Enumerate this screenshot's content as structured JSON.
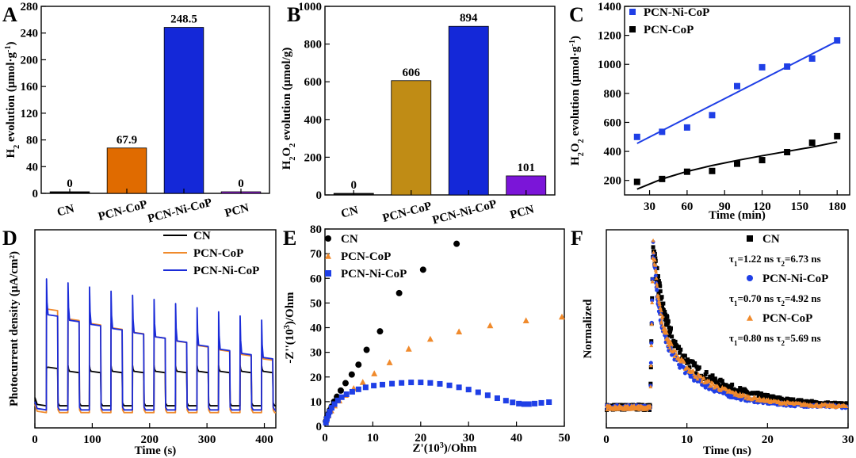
{
  "chart_data": [
    {
      "panel": "A",
      "type": "bar",
      "ylabel_parts": [
        "H",
        "2",
        " evolution (μmol·g",
        "-1",
        ")"
      ],
      "categories": [
        "CN",
        "PCN-CoP",
        "PCN-Ni-CoP",
        "PCN"
      ],
      "values": [
        0,
        67.9,
        248.5,
        0
      ],
      "labels": [
        "0",
        "67.9",
        "248.5",
        "0"
      ],
      "colors": [
        "#000000",
        "#e06b00",
        "#1428d8",
        "#9b1fe6"
      ],
      "ylim": [
        0,
        280
      ],
      "yticks": [
        0,
        40,
        80,
        120,
        160,
        200,
        240,
        280
      ]
    },
    {
      "panel": "B",
      "type": "bar",
      "ylabel_parts": [
        "H",
        "2",
        "O",
        "2",
        " evolution (μmol/g)"
      ],
      "categories": [
        "CN",
        "PCN-CoP",
        "PCN-Ni-CoP",
        "PCN"
      ],
      "values": [
        0,
        606,
        894,
        101
      ],
      "labels": [
        "0",
        "606",
        "894",
        "101"
      ],
      "colors": [
        "#111111",
        "#c08c15",
        "#1428d8",
        "#7b15d8"
      ],
      "ylim": [
        0,
        1000
      ],
      "yticks": [
        0,
        200,
        400,
        600,
        800,
        1000
      ]
    },
    {
      "panel": "C",
      "type": "scatter",
      "xlabel": "Time (min)",
      "ylabel_parts": [
        "H",
        "2",
        "O",
        "2",
        " evolution (μmol·g",
        "-1",
        ")"
      ],
      "xlim": [
        10,
        190
      ],
      "ylim": [
        100,
        1400
      ],
      "xticks": [
        30,
        60,
        90,
        120,
        150,
        180
      ],
      "yticks": [
        200,
        400,
        600,
        800,
        1000,
        1200,
        1400
      ],
      "series": [
        {
          "name": "PCN-Ni-CoP",
          "color": "#1f3fe6",
          "marker": "square",
          "x": [
            20,
            40,
            60,
            80,
            100,
            120,
            140,
            160,
            180
          ],
          "y": [
            500,
            535,
            565,
            650,
            850,
            980,
            985,
            1040,
            1165
          ],
          "fit": {
            "kind": "linear",
            "x": [
              20,
              180
            ],
            "y": [
              455,
              1160
            ]
          }
        },
        {
          "name": "PCN-CoP",
          "color": "#000000",
          "marker": "square",
          "x": [
            20,
            40,
            60,
            80,
            100,
            120,
            140,
            160,
            180
          ],
          "y": [
            190,
            210,
            260,
            265,
            315,
            340,
            395,
            460,
            505
          ],
          "fit": {
            "kind": "curve",
            "x": [
              20,
              40,
              60,
              80,
              100,
              120,
              140,
              160,
              180
            ],
            "y": [
              140,
              210,
              262,
              303,
              338,
              370,
              400,
              430,
              465
            ]
          }
        }
      ]
    },
    {
      "panel": "D",
      "type": "line",
      "xlabel": "Time (s)",
      "ylabel": "Photocurrent density (μA/cm²)",
      "xlim": [
        0,
        420
      ],
      "xticks": [
        0,
        100,
        200,
        300,
        400
      ],
      "pulses": [
        20,
        57.5,
        95,
        132.5,
        170,
        207.5,
        245,
        282.5,
        320,
        357.5,
        395
      ],
      "series": [
        {
          "name": "CN",
          "color": "#000000",
          "dark": 0.08,
          "on_start": 0.33,
          "on_end": 0.33,
          "on_first": 0.36,
          "spike": 0.35
        },
        {
          "name": "PCN-CoP",
          "color": "#f08a2c",
          "dark": 0.03,
          "on_start": 0.74,
          "on_end": 0.42,
          "on_first": 0.78,
          "spike": 0.76
        },
        {
          "name": "PCN-Ni-CoP",
          "color": "#1a2bd8",
          "dark": 0.05,
          "on_start": 0.73,
          "on_end": 0.43,
          "on_first": 0.74,
          "spike": 1.0
        }
      ]
    },
    {
      "panel": "E",
      "type": "scatter",
      "xlabel_parts": [
        "Z'(10",
        "3",
        ")/Ohm"
      ],
      "ylabel_parts": [
        "-Z''(10",
        "3",
        ")/Ohm"
      ],
      "xlim": [
        0,
        50
      ],
      "ylim": [
        0,
        80
      ],
      "xticks": [
        0,
        10,
        20,
        30,
        40,
        50
      ],
      "yticks": [
        0,
        10,
        20,
        30,
        40,
        50,
        60,
        70,
        80
      ],
      "series": [
        {
          "name": "CN",
          "color": "#000000",
          "marker": "circle",
          "x": [
            0.2,
            0.4,
            0.7,
            1.0,
            1.4,
            1.9,
            2.5,
            3.3,
            4.3,
            5.6,
            7.0,
            8.7,
            11.5,
            15.5,
            20.5,
            27.5
          ],
          "y": [
            2.0,
            3.5,
            5.0,
            6.5,
            8.0,
            10.0,
            12.0,
            14.5,
            17.5,
            21.0,
            25.0,
            31.0,
            38.5,
            54.0,
            63.5,
            74.0
          ]
        },
        {
          "name": "PCN-CoP",
          "color": "#f08a2c",
          "marker": "triangle",
          "x": [
            0.3,
            0.7,
            1.3,
            2.0,
            3.0,
            4.3,
            6.0,
            7.9,
            10.3,
            13.5,
            17.5,
            22.0,
            28.0,
            34.5,
            42.0,
            49.5
          ],
          "y": [
            2.5,
            4.5,
            6.5,
            8.5,
            10.5,
            12.8,
            15.5,
            18.0,
            21.5,
            26.0,
            31.5,
            35.5,
            38.5,
            41.0,
            43.0,
            44.5
          ]
        },
        {
          "name": "PCN-Ni-CoP",
          "color": "#1f3fe6",
          "marker": "square",
          "x": [
            0.2,
            0.4,
            0.7,
            1.0,
            1.4,
            2.0,
            2.7,
            3.5,
            4.5,
            5.7,
            7.0,
            8.5,
            10.2,
            12.0,
            14.0,
            16.0,
            18.0,
            20.0,
            22.0,
            24.0,
            26.0,
            28.0,
            30.0,
            32.0,
            34.0,
            36.0,
            37.8,
            39.2,
            40.5,
            41.6,
            42.6,
            43.8,
            45.2,
            46.8
          ],
          "y": [
            1.5,
            3.0,
            4.5,
            6.0,
            7.5,
            9.0,
            10.5,
            11.8,
            13.0,
            14.0,
            15.0,
            15.8,
            16.5,
            16.9,
            17.3,
            17.6,
            17.8,
            17.8,
            17.6,
            17.2,
            16.6,
            15.8,
            14.9,
            13.8,
            12.6,
            11.4,
            10.4,
            9.7,
            9.2,
            9.0,
            9.0,
            9.2,
            9.5,
            9.8
          ]
        }
      ]
    },
    {
      "panel": "F",
      "type": "scatter",
      "xlabel": "Time (ns)",
      "ylabel": "Normalized",
      "xlim": [
        0,
        30
      ],
      "xticks": [
        0,
        10,
        20,
        30
      ],
      "series": [
        {
          "name": "CN",
          "color": "#000000",
          "marker": "square",
          "t1_value": "1.22 ns",
          "t2_value": "6.73 ns",
          "tau1": 1.22,
          "tau2": 6.73
        },
        {
          "name": "PCN-Ni-CoP",
          "color": "#1f3fe6",
          "marker": "circle",
          "t1_value": "0.70 ns",
          "t2_value": "4.92 ns",
          "tau1": 0.7,
          "tau2": 4.92
        },
        {
          "name": "PCN-CoP",
          "color": "#f08a2c",
          "marker": "triangle",
          "t1_value": "0.80 ns",
          "t2_value": "5.69 ns",
          "tau1": 0.8,
          "tau2": 5.69
        }
      ]
    }
  ]
}
